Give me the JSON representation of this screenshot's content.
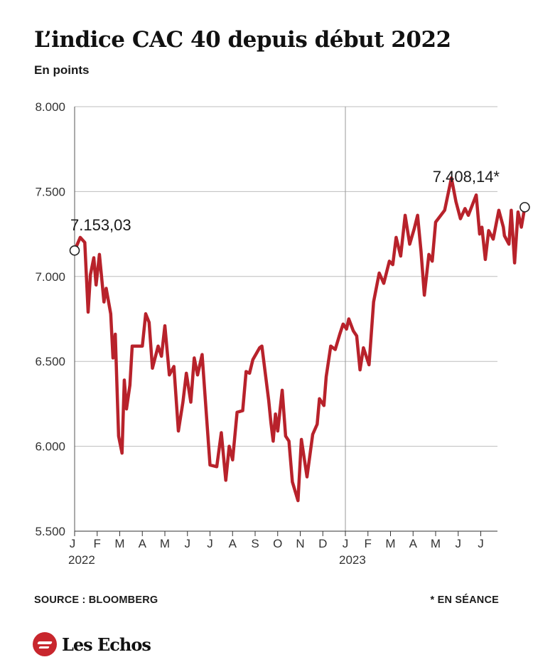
{
  "header": {
    "title": "L’indice CAC 40 depuis début 2022",
    "subtitle": "En points"
  },
  "footer": {
    "source": "SOURCE : BLOOMBERG",
    "note": "* EN SÉANCE",
    "brand": "Les Echos"
  },
  "chart_data": {
    "type": "line",
    "title": "L’indice CAC 40 depuis début 2022",
    "subtitle": "En points",
    "ylim": [
      5500,
      8000
    ],
    "yticks": [
      5500,
      6000,
      6500,
      7000,
      7500,
      8000
    ],
    "ytick_labels": [
      "5.500",
      "6.000",
      "6.500",
      "7.000",
      "7.500",
      "8.000"
    ],
    "grid": true,
    "line_color": "#b8222b",
    "x_domain": [
      0,
      19
    ],
    "month_ticks": [
      {
        "x": 0,
        "label": "J"
      },
      {
        "x": 1,
        "label": "F"
      },
      {
        "x": 2,
        "label": "M"
      },
      {
        "x": 3,
        "label": "A"
      },
      {
        "x": 4,
        "label": "M"
      },
      {
        "x": 5,
        "label": "J"
      },
      {
        "x": 6,
        "label": "J"
      },
      {
        "x": 7,
        "label": "A"
      },
      {
        "x": 8,
        "label": "S"
      },
      {
        "x": 9,
        "label": "O"
      },
      {
        "x": 10,
        "label": "N"
      },
      {
        "x": 11,
        "label": "D"
      },
      {
        "x": 12,
        "label": "J"
      },
      {
        "x": 13,
        "label": "F"
      },
      {
        "x": 14,
        "label": "M"
      },
      {
        "x": 15,
        "label": "A"
      },
      {
        "x": 16,
        "label": "M"
      },
      {
        "x": 17,
        "label": "J"
      },
      {
        "x": 18,
        "label": "J"
      }
    ],
    "year_labels": [
      {
        "x": 0,
        "label": "2022"
      },
      {
        "x": 12,
        "label": "2023"
      }
    ],
    "year_divider_x": 12,
    "annotations": [
      {
        "x": 0.0,
        "y": 7153.03,
        "label": "7.153,03",
        "position": "above-right"
      },
      {
        "x": 18.7,
        "y": 7408.14,
        "label": "7.408,14*",
        "position": "above-left"
      }
    ],
    "series": [
      {
        "points": [
          [
            0.0,
            7153
          ],
          [
            0.25,
            7230
          ],
          [
            0.45,
            7200
          ],
          [
            0.6,
            6790
          ],
          [
            0.7,
            7010
          ],
          [
            0.85,
            7110
          ],
          [
            0.95,
            6950
          ],
          [
            1.1,
            7130
          ],
          [
            1.3,
            6850
          ],
          [
            1.4,
            6930
          ],
          [
            1.6,
            6780
          ],
          [
            1.7,
            6520
          ],
          [
            1.8,
            6660
          ],
          [
            1.95,
            6060
          ],
          [
            2.1,
            5960
          ],
          [
            2.2,
            6390
          ],
          [
            2.3,
            6220
          ],
          [
            2.45,
            6360
          ],
          [
            2.55,
            6590
          ],
          [
            3.0,
            6590
          ],
          [
            3.15,
            6780
          ],
          [
            3.3,
            6730
          ],
          [
            3.45,
            6460
          ],
          [
            3.7,
            6590
          ],
          [
            3.85,
            6530
          ],
          [
            4.0,
            6710
          ],
          [
            4.2,
            6420
          ],
          [
            4.4,
            6470
          ],
          [
            4.6,
            6090
          ],
          [
            4.8,
            6260
          ],
          [
            4.95,
            6430
          ],
          [
            5.15,
            6260
          ],
          [
            5.3,
            6520
          ],
          [
            5.45,
            6420
          ],
          [
            5.65,
            6540
          ],
          [
            5.85,
            6170
          ],
          [
            6.0,
            5890
          ],
          [
            6.3,
            5880
          ],
          [
            6.5,
            6080
          ],
          [
            6.7,
            5800
          ],
          [
            6.85,
            6000
          ],
          [
            7.0,
            5920
          ],
          [
            7.2,
            6200
          ],
          [
            7.45,
            6210
          ],
          [
            7.6,
            6440
          ],
          [
            7.75,
            6430
          ],
          [
            7.9,
            6510
          ],
          [
            8.2,
            6580
          ],
          [
            8.3,
            6590
          ],
          [
            8.6,
            6270
          ],
          [
            8.7,
            6140
          ],
          [
            8.8,
            6030
          ],
          [
            8.9,
            6190
          ],
          [
            9.0,
            6090
          ],
          [
            9.2,
            6330
          ],
          [
            9.35,
            6060
          ],
          [
            9.5,
            6030
          ],
          [
            9.65,
            5790
          ],
          [
            9.9,
            5680
          ],
          [
            10.05,
            6040
          ],
          [
            10.3,
            5820
          ],
          [
            10.55,
            6070
          ],
          [
            10.75,
            6130
          ],
          [
            10.85,
            6280
          ],
          [
            11.05,
            6240
          ],
          [
            11.15,
            6410
          ],
          [
            11.35,
            6590
          ],
          [
            11.55,
            6570
          ],
          [
            11.75,
            6660
          ],
          [
            11.9,
            6720
          ],
          [
            12.05,
            6690
          ],
          [
            12.15,
            6750
          ],
          [
            12.35,
            6680
          ],
          [
            12.5,
            6650
          ],
          [
            12.65,
            6450
          ],
          [
            12.8,
            6580
          ],
          [
            13.05,
            6480
          ],
          [
            13.25,
            6850
          ],
          [
            13.5,
            7020
          ],
          [
            13.7,
            6960
          ],
          [
            13.95,
            7090
          ],
          [
            14.1,
            7070
          ],
          [
            14.25,
            7230
          ],
          [
            14.45,
            7120
          ],
          [
            14.65,
            7360
          ],
          [
            14.85,
            7190
          ],
          [
            15.05,
            7280
          ],
          [
            15.2,
            7360
          ],
          [
            15.35,
            7150
          ],
          [
            15.5,
            6890
          ],
          [
            15.7,
            7130
          ],
          [
            15.85,
            7090
          ],
          [
            16.0,
            7320
          ],
          [
            16.4,
            7390
          ],
          [
            16.7,
            7580
          ],
          [
            16.9,
            7440
          ],
          [
            17.0,
            7390
          ],
          [
            17.1,
            7340
          ],
          [
            17.3,
            7400
          ],
          [
            17.45,
            7360
          ],
          [
            17.8,
            7480
          ],
          [
            17.95,
            7250
          ],
          [
            18.05,
            7290
          ],
          [
            18.2,
            7100
          ],
          [
            18.35,
            7270
          ],
          [
            18.55,
            7220
          ],
          [
            18.8,
            7390
          ],
          [
            19.0,
            7290
          ],
          [
            19.05,
            7240
          ],
          [
            19.25,
            7190
          ],
          [
            19.35,
            7390
          ],
          [
            19.5,
            7080
          ],
          [
            19.65,
            7380
          ],
          [
            19.8,
            7290
          ],
          [
            19.95,
            7408
          ]
        ]
      }
    ]
  }
}
